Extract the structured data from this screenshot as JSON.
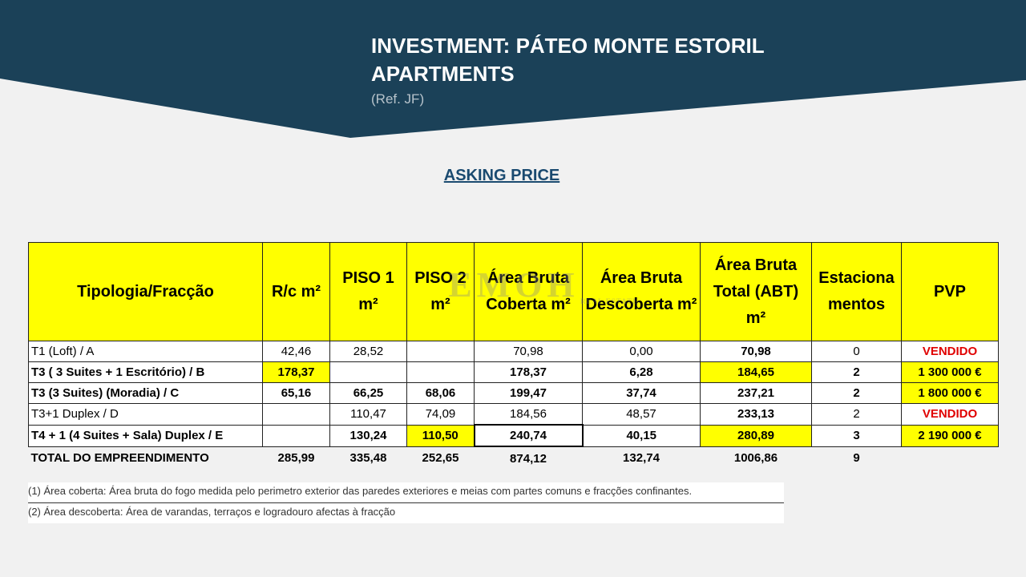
{
  "header": {
    "title": "INVESTMENT: PÁTEO MONTE ESTORIL APARTMENTS",
    "ref": "(Ref. JF)"
  },
  "subtitle": "ASKING PRICE",
  "watermark": {
    "name": "EMOH",
    "tagline": "REAL ESTATE"
  },
  "table": {
    "headers": [
      "Tipologia/Fracção",
      "R/c m²",
      "PISO 1 m²",
      "PISO 2 m²",
      "Área Bruta Coberta m²",
      "Área Bruta Descoberta m²",
      "Área Bruta Total (ABT) m²",
      "Estaciona mentos",
      "PVP"
    ],
    "rows": [
      [
        "T1 (Loft) / A",
        "42,46",
        "28,52",
        null,
        "70,98",
        "0,00",
        "70,98",
        "0",
        "VENDIDO"
      ],
      [
        "T3 ( 3 Suites + 1 Escritório) / B",
        "178,37",
        null,
        null,
        "178,37",
        "6,28",
        "184,65",
        "2",
        "1 300 000 €"
      ],
      [
        "T3  (3 Suites) (Moradia) /  C",
        "65,16",
        "66,25",
        "68,06",
        "199,47",
        "37,74",
        "237,21",
        "2",
        "1 800 000 €"
      ],
      [
        "T3+1  Duplex / D",
        null,
        "110,47",
        "74,09",
        "184,56",
        "48,57",
        "233,13",
        "2",
        "VENDIDO"
      ],
      [
        "T4 + 1  (4 Suites +  Sala) Duplex / E",
        null,
        "130,24",
        "110,50",
        "240,74",
        "40,15",
        "280,89",
        "3",
        "2 190 000 €"
      ]
    ],
    "total": [
      "TOTAL DO EMPREENDIMENTO",
      "285,99",
      "335,48",
      "252,65",
      "874,12",
      "132,74",
      "1006,86",
      "9"
    ]
  },
  "notes": [
    "(1) Área coberta: Área bruta do fogo medida pelo perimetro exterior das paredes exteriores e meias com partes comuns e fracções confinantes.",
    "(2) Área descoberta: Área de varandas, terraços e logradouro afectas à fracção"
  ]
}
